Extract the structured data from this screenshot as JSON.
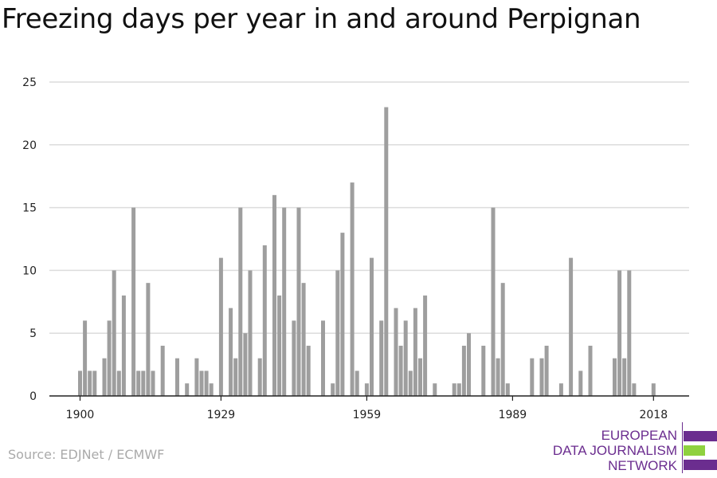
{
  "header": {
    "title": "Freezing days per year in and around Perpignan"
  },
  "footer": {
    "source": "Source: EDJNet / ECMWF"
  },
  "brand": {
    "lines": [
      "EUROPEAN",
      "DATA JOURNALISM",
      "NETWORK"
    ],
    "colors": {
      "purple": "#6b2d8f",
      "green": "#8fd13f"
    }
  },
  "colors": {
    "bar": "#9e9e9e",
    "grid": "#dcdcdc",
    "axis": "#222222",
    "text": "#222222"
  },
  "chart_data": {
    "type": "bar",
    "title": "Freezing days per year in and around Perpignan",
    "xlabel": "",
    "ylabel": "",
    "x_start": 1900,
    "x_end": 2018,
    "xticks": [
      1900,
      1929,
      1959,
      1989,
      2018
    ],
    "ylim": [
      0,
      25
    ],
    "yticks": [
      0,
      5,
      10,
      15,
      20,
      25
    ],
    "grid": true,
    "values": [
      2,
      6,
      2,
      2,
      0,
      3,
      6,
      10,
      2,
      8,
      0,
      15,
      2,
      2,
      9,
      2,
      0,
      4,
      0,
      0,
      3,
      0,
      1,
      0,
      3,
      2,
      2,
      1,
      0,
      11,
      0,
      7,
      3,
      15,
      5,
      10,
      0,
      3,
      12,
      0,
      16,
      8,
      15,
      0,
      6,
      15,
      9,
      4,
      0,
      0,
      6,
      0,
      1,
      10,
      13,
      0,
      17,
      2,
      0,
      1,
      11,
      0,
      6,
      23,
      0,
      7,
      4,
      6,
      2,
      7,
      3,
      8,
      0,
      1,
      0,
      0,
      0,
      1,
      1,
      4,
      5,
      0,
      0,
      4,
      0,
      15,
      3,
      9,
      1,
      0,
      0,
      0,
      0,
      3,
      0,
      3,
      4,
      0,
      0,
      1,
      0,
      11,
      0,
      2,
      0,
      4,
      0,
      0,
      0,
      0,
      3,
      10,
      3,
      10,
      1,
      0,
      0,
      0,
      1
    ]
  }
}
